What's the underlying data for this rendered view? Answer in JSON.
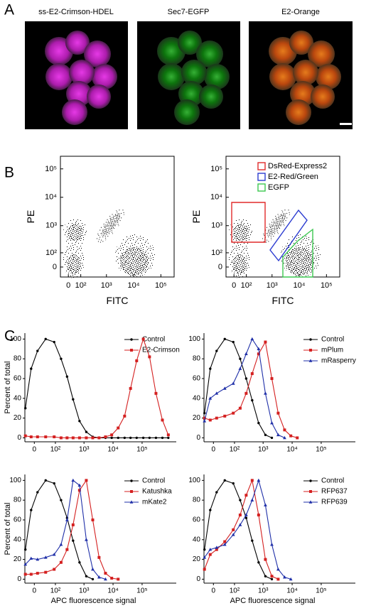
{
  "panel_labels": [
    "A",
    "B",
    "C"
  ],
  "images": [
    {
      "title": "ss-E2-Crimson-HDEL"
    },
    {
      "title": "Sec7-EGFP"
    },
    {
      "title": "E2-Orange"
    }
  ],
  "chart_data": [
    {
      "type": "scatter",
      "xlabel": "FITC",
      "ylabel": "PE",
      "xlim": [
        -58,
        307000
      ],
      "ylim": [
        -63,
        278000
      ],
      "xticks": [
        0,
        {
          "value": 100,
          "label": "10²"
        },
        {
          "value": 1000,
          "label": "10³"
        },
        {
          "value": 10000,
          "label": "10⁴"
        },
        {
          "value": 100000,
          "label": "10⁵"
        }
      ],
      "yticks": [
        0,
        {
          "value": 100,
          "label": "10²"
        },
        {
          "value": 1000,
          "label": "10³"
        },
        {
          "value": 10000,
          "label": "10⁴"
        },
        {
          "value": 100000,
          "label": "10⁵"
        }
      ]
    },
    {
      "type": "scatter",
      "xlabel": "FITC",
      "ylabel": "PE",
      "xlim": [
        -58,
        307000
      ],
      "ylim": [
        -63,
        278000
      ],
      "xticks": [
        0,
        {
          "value": 100,
          "label": "10²"
        },
        {
          "value": 1000,
          "label": "10³"
        },
        {
          "value": 10000,
          "label": "10⁴"
        },
        {
          "value": 100000,
          "label": "10⁵"
        }
      ],
      "yticks": [
        0,
        {
          "value": 100,
          "label": "10²"
        },
        {
          "value": 1000,
          "label": "10³"
        },
        {
          "value": 10000,
          "label": "10⁴"
        },
        {
          "value": 100000,
          "label": "10⁵"
        }
      ],
      "gates": [
        {
          "name": "DsRed-Express2",
          "color": "#e02a2a"
        },
        {
          "name": "E2-Red/Green",
          "color": "#2b3bd0"
        },
        {
          "name": "EGFP",
          "color": "#3cc850"
        }
      ]
    },
    {
      "type": "line",
      "ylabel": "Percent of total",
      "xscale": "asinh",
      "legend": "upper right",
      "xlim": [
        -32,
        1500000
      ],
      "ylim": [
        -4,
        106
      ],
      "xticks": [
        0,
        {
          "value": 100,
          "label": "10²"
        },
        {
          "value": 1000,
          "label": "10³"
        },
        {
          "value": 10000,
          "label": "10⁴"
        },
        {
          "value": 100000,
          "label": "10⁵"
        }
      ],
      "yticks": [
        0,
        20,
        40,
        60,
        80,
        100
      ],
      "x": [
        -30,
        -10,
        10,
        40,
        90,
        160,
        260,
        420,
        700,
        1200,
        2000,
        3300,
        5500,
        9000,
        15000,
        25000,
        40000,
        65000,
        110000,
        180000,
        300000,
        500000,
        800000
      ],
      "series": [
        {
          "name": "Control",
          "color": "#000000",
          "marker": "circle",
          "values": [
            30,
            70,
            88,
            100,
            97,
            80,
            62,
            39,
            17,
            6,
            1,
            0,
            0,
            0,
            0,
            0,
            0,
            0,
            0,
            0,
            0,
            0,
            0
          ]
        },
        {
          "name": "E2-Crimson",
          "color": "#d42020",
          "marker": "square",
          "values": [
            2,
            1,
            1,
            1,
            1,
            0,
            0,
            0,
            0,
            0,
            0,
            0,
            1,
            3,
            10,
            22,
            50,
            78,
            100,
            82,
            45,
            18,
            3
          ]
        }
      ]
    },
    {
      "type": "line",
      "xscale": "asinh",
      "legend": "upper right",
      "xlim": [
        -32,
        1500000
      ],
      "ylim": [
        -4,
        106
      ],
      "xticks": [
        0,
        {
          "value": 100,
          "label": "10²"
        },
        {
          "value": 1000,
          "label": "10³"
        },
        {
          "value": 10000,
          "label": "10⁴"
        },
        {
          "value": 100000,
          "label": "10⁵"
        }
      ],
      "yticks": [
        0,
        20,
        40,
        60,
        80,
        100
      ],
      "x": [
        -30,
        -10,
        10,
        40,
        90,
        160,
        260,
        420,
        700,
        1200,
        2000,
        3300,
        5500,
        9000,
        15000,
        25000,
        40000,
        65000,
        110000,
        180000,
        300000,
        500000,
        800000
      ],
      "series": [
        {
          "name": "Control",
          "color": "#000000",
          "marker": "circle",
          "values": [
            25,
            70,
            88,
            100,
            97,
            80,
            60,
            38,
            15,
            3,
            0,
            null,
            null,
            null,
            null,
            null,
            null,
            null,
            null,
            null,
            null,
            null,
            null
          ]
        },
        {
          "name": "mPlum",
          "color": "#d42020",
          "marker": "square",
          "values": [
            20,
            18,
            20,
            22,
            25,
            30,
            45,
            65,
            85,
            97,
            60,
            25,
            8,
            2,
            0,
            null,
            null,
            null,
            null,
            null,
            null,
            null,
            null
          ]
        },
        {
          "name": "mRasperry",
          "color": "#1f2fa8",
          "marker": "triangle",
          "values": [
            17,
            40,
            45,
            50,
            55,
            70,
            85,
            100,
            90,
            45,
            15,
            3,
            0,
            null,
            null,
            null,
            null,
            null,
            null,
            null,
            null,
            null,
            null
          ]
        }
      ]
    },
    {
      "type": "line",
      "xlabel": "APC fluorescence signal",
      "ylabel": "Percent of total",
      "xscale": "asinh",
      "legend": "upper right",
      "xlim": [
        -32,
        1500000
      ],
      "ylim": [
        -4,
        106
      ],
      "xticks": [
        0,
        {
          "value": 100,
          "label": "10²"
        },
        {
          "value": 1000,
          "label": "10³"
        },
        {
          "value": 10000,
          "label": "10⁴"
        },
        {
          "value": 100000,
          "label": "10⁵"
        }
      ],
      "yticks": [
        0,
        20,
        40,
        60,
        80,
        100
      ],
      "x": [
        -30,
        -10,
        10,
        40,
        90,
        160,
        260,
        420,
        700,
        1200,
        2000,
        3300,
        5500,
        9000,
        15000,
        25000,
        40000,
        65000,
        110000,
        180000,
        300000,
        500000,
        800000
      ],
      "series": [
        {
          "name": "Control",
          "color": "#000000",
          "marker": "circle",
          "values": [
            30,
            70,
            88,
            100,
            97,
            80,
            62,
            39,
            17,
            3,
            0,
            null,
            null,
            null,
            null,
            null,
            null,
            null,
            null,
            null,
            null,
            null,
            null
          ]
        },
        {
          "name": "Katushka",
          "color": "#d42020",
          "marker": "square",
          "values": [
            5,
            5,
            6,
            7,
            10,
            17,
            30,
            55,
            90,
            100,
            60,
            22,
            6,
            1,
            0,
            null,
            null,
            null,
            null,
            null,
            null,
            null,
            null
          ]
        },
        {
          "name": "mKate2",
          "color": "#1f2fa8",
          "marker": "triangle",
          "values": [
            15,
            21,
            20,
            22,
            25,
            35,
            60,
            100,
            95,
            40,
            10,
            2,
            0,
            null,
            null,
            null,
            null,
            null,
            null,
            null,
            null,
            null,
            null
          ]
        }
      ]
    },
    {
      "type": "line",
      "xlabel": "APC fluorescence signal",
      "xscale": "asinh",
      "legend": "upper right",
      "xlim": [
        -32,
        1500000
      ],
      "ylim": [
        -4,
        106
      ],
      "xticks": [
        0,
        {
          "value": 100,
          "label": "10²"
        },
        {
          "value": 1000,
          "label": "10³"
        },
        {
          "value": 10000,
          "label": "10⁴"
        },
        {
          "value": 100000,
          "label": "10⁵"
        }
      ],
      "yticks": [
        0,
        20,
        40,
        60,
        80,
        100
      ],
      "x": [
        -30,
        -10,
        10,
        40,
        90,
        160,
        260,
        420,
        700,
        1200,
        2000,
        3300,
        5500,
        9000,
        15000,
        25000,
        40000,
        65000,
        110000,
        180000,
        300000,
        500000,
        800000
      ],
      "series": [
        {
          "name": "Control",
          "color": "#000000",
          "marker": "circle",
          "values": [
            30,
            70,
            88,
            100,
            97,
            80,
            62,
            39,
            17,
            3,
            0,
            null,
            null,
            null,
            null,
            null,
            null,
            null,
            null,
            null,
            null,
            null,
            null
          ]
        },
        {
          "name": "RFP637",
          "color": "#d42020",
          "marker": "square",
          "values": [
            10,
            25,
            30,
            38,
            50,
            65,
            85,
            100,
            65,
            20,
            3,
            0,
            null,
            null,
            null,
            null,
            null,
            null,
            null,
            null,
            null,
            null,
            null
          ]
        },
        {
          "name": "RFP639",
          "color": "#1f2fa8",
          "marker": "triangle",
          "values": [
            22,
            30,
            32,
            35,
            45,
            55,
            65,
            80,
            100,
            75,
            35,
            10,
            2,
            0,
            null,
            null,
            null,
            null,
            null,
            null,
            null,
            null,
            null
          ]
        }
      ]
    }
  ]
}
